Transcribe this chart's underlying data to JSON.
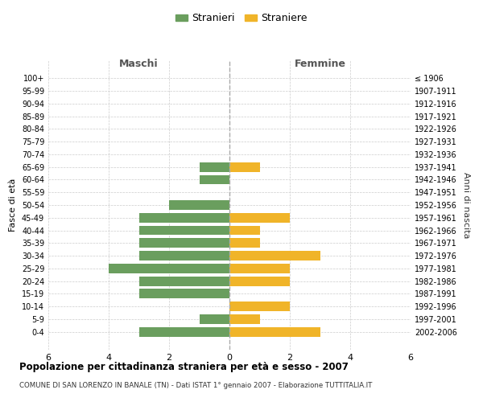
{
  "age_groups": [
    "100+",
    "95-99",
    "90-94",
    "85-89",
    "80-84",
    "75-79",
    "70-74",
    "65-69",
    "60-64",
    "55-59",
    "50-54",
    "45-49",
    "40-44",
    "35-39",
    "30-34",
    "25-29",
    "20-24",
    "15-19",
    "10-14",
    "5-9",
    "0-4"
  ],
  "birth_years": [
    "≤ 1906",
    "1907-1911",
    "1912-1916",
    "1917-1921",
    "1922-1926",
    "1927-1931",
    "1932-1936",
    "1937-1941",
    "1942-1946",
    "1947-1951",
    "1952-1956",
    "1957-1961",
    "1962-1966",
    "1967-1971",
    "1972-1976",
    "1977-1981",
    "1982-1986",
    "1987-1991",
    "1992-1996",
    "1997-2001",
    "2002-2006"
  ],
  "males": [
    0,
    0,
    0,
    0,
    0,
    0,
    0,
    1,
    1,
    0,
    2,
    3,
    3,
    3,
    3,
    4,
    3,
    3,
    0,
    1,
    3
  ],
  "females": [
    0,
    0,
    0,
    0,
    0,
    0,
    0,
    1,
    0,
    0,
    0,
    2,
    1,
    1,
    3,
    2,
    2,
    0,
    2,
    1,
    3
  ],
  "male_color": "#6a9e5e",
  "female_color": "#f0b429",
  "title": "Popolazione per cittadinanza straniera per età e sesso - 2007",
  "subtitle": "COMUNE DI SAN LORENZO IN BANALE (TN) - Dati ISTAT 1° gennaio 2007 - Elaborazione TUTTITALIA.IT",
  "legend_male": "Stranieri",
  "legend_female": "Straniere",
  "label_maschi": "Maschi",
  "label_femmine": "Femmine",
  "ylabel_left": "Fasce di età",
  "ylabel_right": "Anni di nascita",
  "xlim": 6,
  "background_color": "#ffffff",
  "grid_color": "#cccccc",
  "bar_height": 0.75
}
